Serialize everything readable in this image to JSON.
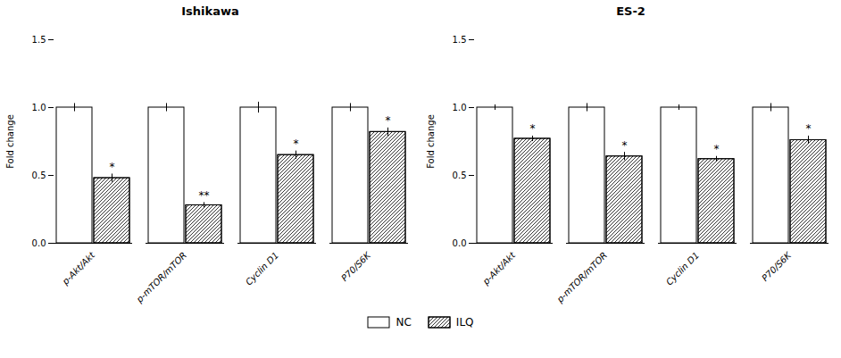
{
  "chart_data": [
    {
      "type": "bar",
      "title": "Ishikawa",
      "ylabel": "Fold change",
      "categories": [
        "p-Akt/Akt",
        "p-mTOR/mTOR",
        "Cyclin D1",
        "P70/S6K"
      ],
      "series": [
        {
          "name": "NC",
          "color": "#ffffff",
          "values": [
            1.0,
            1.0,
            1.0,
            1.0
          ],
          "errors": [
            0.03,
            0.03,
            0.04,
            0.03
          ]
        },
        {
          "name": "ILQ",
          "color": "#ffffff",
          "values": [
            0.48,
            0.28,
            0.65,
            0.82
          ],
          "errors": [
            0.03,
            0.02,
            0.03,
            0.03
          ],
          "annotations": [
            "*",
            "**",
            "*",
            "*"
          ]
        }
      ],
      "ylim": [
        0.0,
        1.5
      ],
      "yticks": [
        {
          "value": 0.0,
          "label": "0.0"
        },
        0.5,
        {
          "value": 1.0,
          "label": "1.0"
        },
        1.5
      ],
      "legend": "bottom"
    },
    {
      "type": "bar",
      "title": "ES-2",
      "ylabel": "Fold change",
      "categories": [
        "p-Akt/Akt",
        "p-mTOR/mTOR",
        "Cyclin D1",
        "P70/S6K"
      ],
      "series": [
        {
          "name": "NC",
          "color": "#ffffff",
          "values": [
            1.0,
            1.0,
            1.0,
            1.0
          ],
          "errors": [
            0.02,
            0.03,
            0.02,
            0.03
          ]
        },
        {
          "name": "ILQ",
          "color": "#ffffff",
          "values": [
            0.77,
            0.64,
            0.62,
            0.76
          ],
          "errors": [
            0.02,
            0.03,
            0.02,
            0.03
          ],
          "annotations": [
            "*",
            "*",
            "*",
            "*"
          ]
        }
      ],
      "ylim": [
        0.0,
        1.5
      ],
      "yticks": [
        {
          "value": 0.0,
          "label": "0.0"
        },
        0.5,
        {
          "value": 1.0,
          "label": "1.0"
        },
        1.5
      ],
      "legend": "bottom"
    }
  ]
}
